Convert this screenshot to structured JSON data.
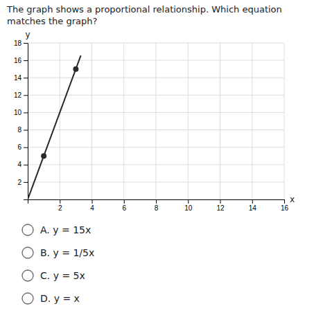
{
  "chart_data": {
    "type": "line",
    "title": "The graph shows a proportional relationship. Which equation matches the graph?",
    "x_label": "x",
    "y_label": "y",
    "xlim": [
      0,
      16
    ],
    "ylim": [
      0,
      18
    ],
    "xticks": [
      2,
      4,
      6,
      8,
      10,
      12,
      14,
      16
    ],
    "yticks": [
      2,
      4,
      6,
      8,
      10,
      12,
      14,
      16,
      18
    ],
    "grid": true,
    "series": [
      {
        "type": "line",
        "color": "#2a2a2a",
        "x": [
          0,
          3.3
        ],
        "values": [
          0,
          16.5
        ]
      },
      {
        "type": "scatter",
        "color": "#2a2a2a",
        "x": [
          1,
          3
        ],
        "values": [
          5,
          15
        ]
      }
    ],
    "annotations": [
      "A. y = 15x",
      "B. y = 1/5x",
      "C. y = 5x",
      "D. y = x"
    ]
  }
}
